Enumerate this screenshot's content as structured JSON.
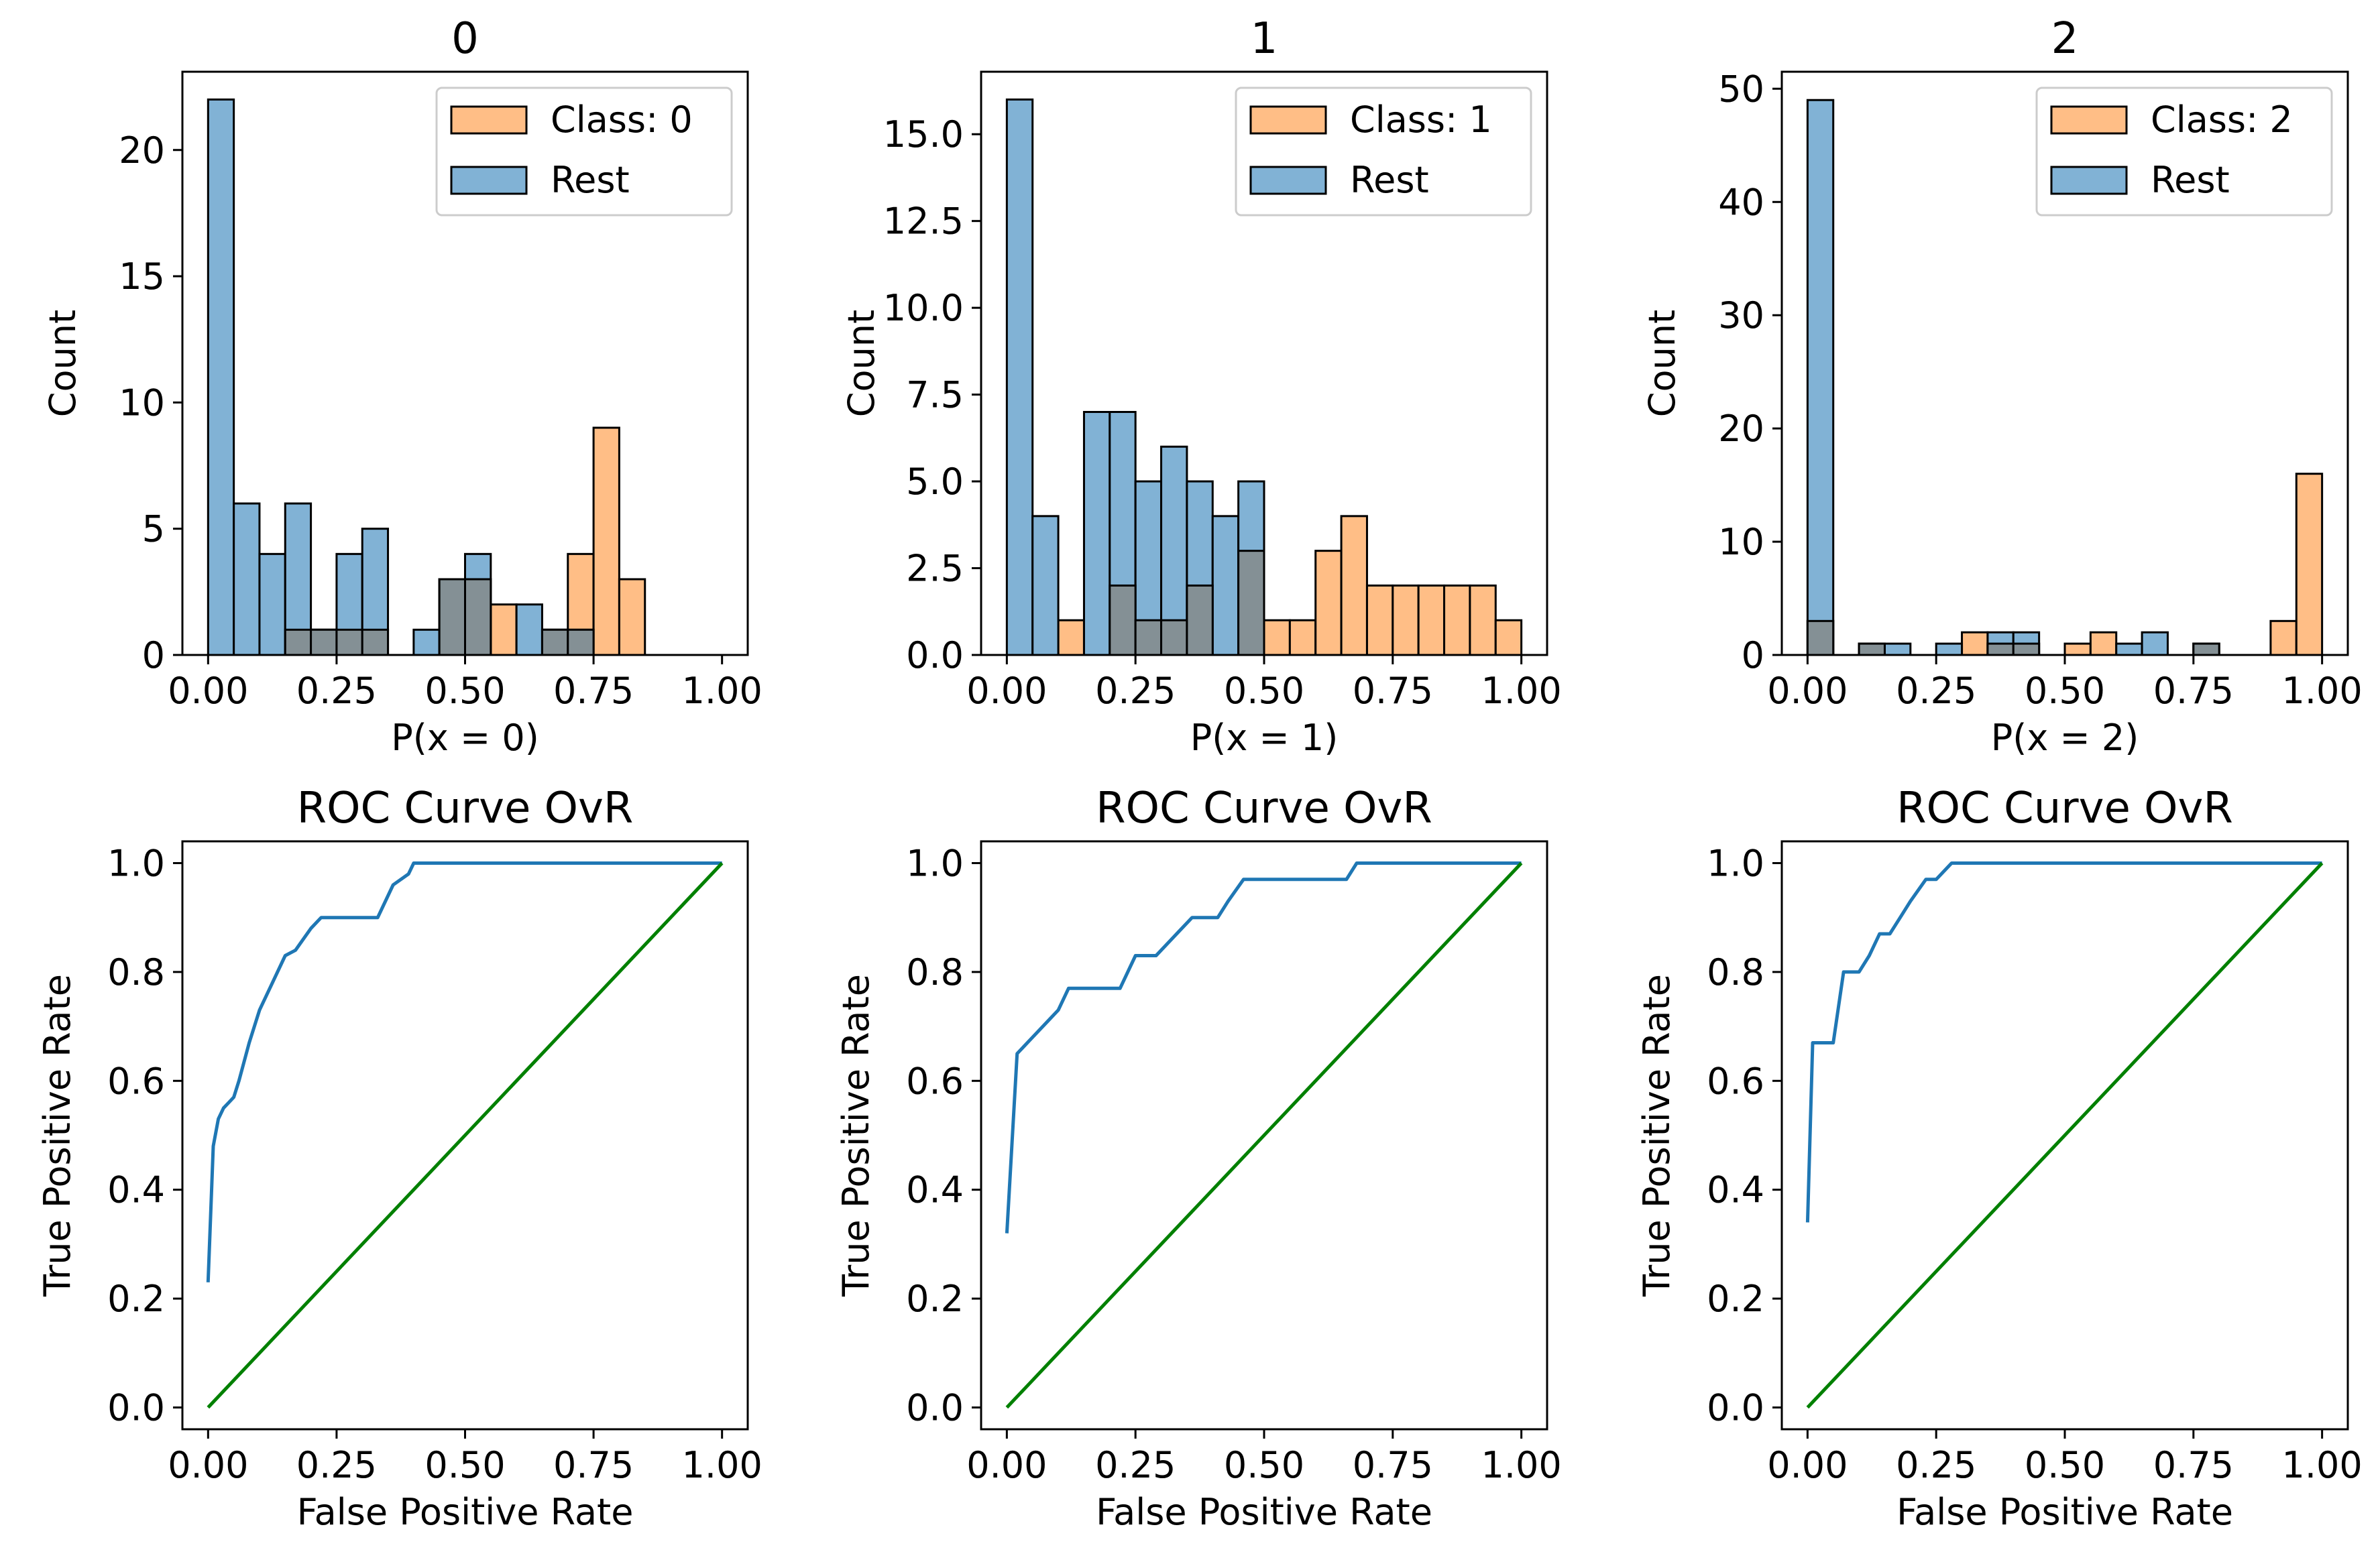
{
  "chart_data": [
    {
      "type": "bar",
      "title": "0",
      "xlabel": "P(x = 0)",
      "ylabel": "Count",
      "xlim": [
        -0.05,
        1.05
      ],
      "ylim": [
        0,
        23.1
      ],
      "xticks": [
        "0.00",
        "0.25",
        "0.50",
        "0.75",
        "1.00"
      ],
      "xtick_values": [
        0,
        0.25,
        0.5,
        0.75,
        1.0
      ],
      "yticks": [
        "0",
        "5",
        "10",
        "15",
        "20"
      ],
      "ytick_values": [
        0,
        5,
        10,
        15,
        20
      ],
      "grid": false,
      "legend_position": "top-right",
      "bin_width": 0.05,
      "bin_starts": [
        0.0,
        0.05,
        0.1,
        0.15,
        0.2,
        0.25,
        0.3,
        0.35,
        0.4,
        0.45,
        0.5,
        0.55,
        0.6,
        0.65,
        0.7,
        0.75,
        0.8,
        0.85,
        0.9,
        0.95
      ],
      "series": [
        {
          "name": "Class: 0",
          "color": "#ffbe86",
          "values": [
            0,
            0,
            0,
            1,
            1,
            1,
            1,
            0,
            0,
            3,
            3,
            2,
            0,
            1,
            4,
            9,
            3,
            0,
            0,
            0
          ]
        },
        {
          "name": "Rest",
          "color": "#81b2d5",
          "values": [
            22,
            6,
            4,
            6,
            1,
            4,
            5,
            0,
            1,
            3,
            4,
            0,
            2,
            1,
            1,
            0,
            0,
            0,
            0,
            0
          ]
        }
      ]
    },
    {
      "type": "bar",
      "title": "1",
      "xlabel": "P(x = 1)",
      "ylabel": "Count",
      "xlim": [
        -0.05,
        1.05
      ],
      "ylim": [
        0,
        16.8
      ],
      "xticks": [
        "0.00",
        "0.25",
        "0.50",
        "0.75",
        "1.00"
      ],
      "xtick_values": [
        0,
        0.25,
        0.5,
        0.75,
        1.0
      ],
      "yticks": [
        "0.0",
        "2.5",
        "5.0",
        "7.5",
        "10.0",
        "12.5",
        "15.0"
      ],
      "ytick_values": [
        0,
        2.5,
        5,
        7.5,
        10,
        12.5,
        15
      ],
      "grid": false,
      "legend_position": "top-right",
      "bin_width": 0.05,
      "bin_starts": [
        0.0,
        0.05,
        0.1,
        0.15,
        0.2,
        0.25,
        0.3,
        0.35,
        0.4,
        0.45,
        0.5,
        0.55,
        0.6,
        0.65,
        0.7,
        0.75,
        0.8,
        0.85,
        0.9,
        0.95
      ],
      "series": [
        {
          "name": "Class: 1",
          "color": "#ffbe86",
          "values": [
            0,
            0,
            1,
            0,
            2,
            1,
            1,
            2,
            0,
            3,
            1,
            1,
            3,
            4,
            2,
            2,
            2,
            2,
            2,
            1
          ]
        },
        {
          "name": "Rest",
          "color": "#81b2d5",
          "values": [
            16,
            4,
            0,
            7,
            7,
            5,
            6,
            5,
            4,
            5,
            0,
            0,
            0,
            0,
            0,
            0,
            0,
            0,
            0,
            0
          ]
        }
      ]
    },
    {
      "type": "bar",
      "title": "2",
      "xlabel": "P(x = 2)",
      "ylabel": "Count",
      "xlim": [
        -0.05,
        1.05
      ],
      "ylim": [
        0,
        51.5
      ],
      "xticks": [
        "0.00",
        "0.25",
        "0.50",
        "0.75",
        "1.00"
      ],
      "xtick_values": [
        0,
        0.25,
        0.5,
        0.75,
        1.0
      ],
      "yticks": [
        "0",
        "10",
        "20",
        "30",
        "40",
        "50"
      ],
      "ytick_values": [
        0,
        10,
        20,
        30,
        40,
        50
      ],
      "grid": false,
      "legend_position": "top-right",
      "bin_width": 0.05,
      "bin_starts": [
        0.0,
        0.05,
        0.1,
        0.15,
        0.2,
        0.25,
        0.3,
        0.35,
        0.4,
        0.45,
        0.5,
        0.55,
        0.6,
        0.65,
        0.7,
        0.75,
        0.8,
        0.85,
        0.9,
        0.95
      ],
      "series": [
        {
          "name": "Class: 2",
          "color": "#ffbe86",
          "values": [
            3,
            0,
            1,
            0,
            0,
            0,
            2,
            1,
            1,
            0,
            1,
            2,
            0,
            0,
            0,
            1,
            0,
            0,
            3,
            16
          ]
        },
        {
          "name": "Rest",
          "color": "#81b2d5",
          "values": [
            49,
            0,
            1,
            1,
            0,
            1,
            0,
            2,
            2,
            0,
            0,
            0,
            1,
            2,
            0,
            1,
            0,
            0,
            0,
            0
          ]
        }
      ]
    },
    {
      "type": "line",
      "title": "ROC Curve OvR",
      "xlabel": "False Positive Rate",
      "ylabel": "True Positive Rate",
      "xlim": [
        -0.05,
        1.05
      ],
      "ylim": [
        -0.04,
        1.04
      ],
      "xticks": [
        "0.00",
        "0.25",
        "0.50",
        "0.75",
        "1.00"
      ],
      "xtick_values": [
        0,
        0.25,
        0.5,
        0.75,
        1.0
      ],
      "yticks": [
        "0.0",
        "0.2",
        "0.4",
        "0.6",
        "0.8",
        "1.0"
      ],
      "ytick_values": [
        0,
        0.2,
        0.4,
        0.6,
        0.8,
        1.0
      ],
      "grid": false,
      "series": [
        {
          "color": "#1f77b4",
          "x": [
            0,
            0.01,
            0.02,
            0.03,
            0.04,
            0.05,
            0.06,
            0.08,
            0.1,
            0.12,
            0.15,
            0.17,
            0.2,
            0.22,
            0.33,
            0.36,
            0.39,
            0.4,
            1.0
          ],
          "y": [
            0.23,
            0.48,
            0.53,
            0.55,
            0.56,
            0.57,
            0.6,
            0.67,
            0.73,
            0.77,
            0.83,
            0.84,
            0.88,
            0.9,
            0.9,
            0.96,
            0.98,
            1.0,
            1.0
          ]
        },
        {
          "color": "#008000",
          "x": [
            0,
            1
          ],
          "y": [
            0,
            1
          ]
        }
      ]
    },
    {
      "type": "line",
      "title": "ROC Curve OvR",
      "xlabel": "False Positive Rate",
      "ylabel": "True Positive Rate",
      "xlim": [
        -0.05,
        1.05
      ],
      "ylim": [
        -0.04,
        1.04
      ],
      "xticks": [
        "0.00",
        "0.25",
        "0.50",
        "0.75",
        "1.00"
      ],
      "xtick_values": [
        0,
        0.25,
        0.5,
        0.75,
        1.0
      ],
      "yticks": [
        "0.0",
        "0.2",
        "0.4",
        "0.6",
        "0.8",
        "1.0"
      ],
      "ytick_values": [
        0,
        0.2,
        0.4,
        0.6,
        0.8,
        1.0
      ],
      "grid": false,
      "series": [
        {
          "color": "#1f77b4",
          "x": [
            0,
            0.02,
            0.05,
            0.08,
            0.1,
            0.12,
            0.22,
            0.25,
            0.29,
            0.33,
            0.36,
            0.41,
            0.43,
            0.46,
            0.66,
            0.68,
            1.0
          ],
          "y": [
            0.32,
            0.65,
            0.68,
            0.71,
            0.73,
            0.77,
            0.77,
            0.83,
            0.83,
            0.87,
            0.9,
            0.9,
            0.93,
            0.97,
            0.97,
            1.0,
            1.0
          ]
        },
        {
          "color": "#008000",
          "x": [
            0,
            1
          ],
          "y": [
            0,
            1
          ]
        }
      ]
    },
    {
      "type": "line",
      "title": "ROC Curve OvR",
      "xlabel": "False Positive Rate",
      "ylabel": "True Positive Rate",
      "xlim": [
        -0.05,
        1.05
      ],
      "ylim": [
        -0.04,
        1.04
      ],
      "xticks": [
        "0.00",
        "0.25",
        "0.50",
        "0.75",
        "1.00"
      ],
      "xtick_values": [
        0,
        0.25,
        0.5,
        0.75,
        1.0
      ],
      "yticks": [
        "0.0",
        "0.2",
        "0.4",
        "0.6",
        "0.8",
        "1.0"
      ],
      "ytick_values": [
        0,
        0.2,
        0.4,
        0.6,
        0.8,
        1.0
      ],
      "grid": false,
      "series": [
        {
          "color": "#1f77b4",
          "x": [
            0,
            0.01,
            0.03,
            0.05,
            0.07,
            0.1,
            0.12,
            0.14,
            0.16,
            0.18,
            0.2,
            0.23,
            0.25,
            0.27,
            0.28,
            1.0
          ],
          "y": [
            0.34,
            0.67,
            0.67,
            0.67,
            0.8,
            0.8,
            0.83,
            0.87,
            0.87,
            0.9,
            0.93,
            0.97,
            0.97,
            0.99,
            1.0,
            1.0
          ]
        },
        {
          "color": "#008000",
          "x": [
            0,
            1
          ],
          "y": [
            0,
            1
          ]
        }
      ]
    }
  ]
}
